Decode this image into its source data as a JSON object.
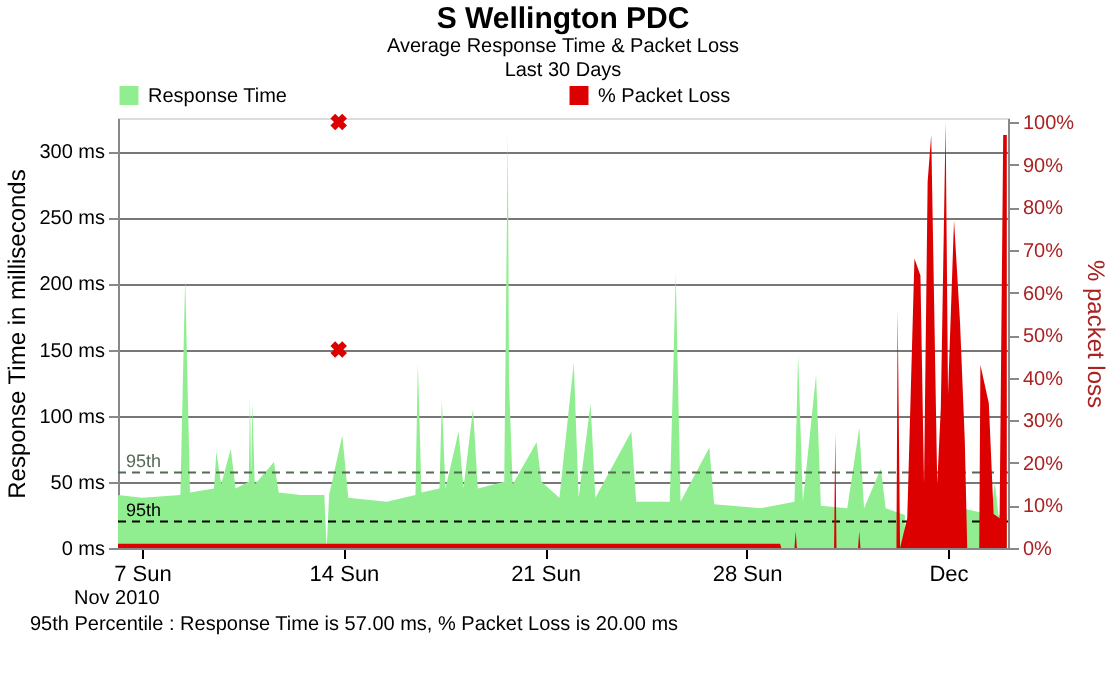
{
  "chart_data": {
    "type": "area",
    "title": "S Wellington PDC",
    "subtitle": "Average Response Time & Packet Loss\nLast 30 Days",
    "ylabel": "Response Time in milliseconds",
    "y2label": "% packet loss",
    "xlim": [
      "2010-11-06T04:00",
      "2010-12-07T02:00"
    ],
    "xticks": [
      {
        "value": "2010-11-07",
        "label": "7 Sun"
      },
      {
        "value": "2010-11-14",
        "label": "14 Sun"
      },
      {
        "value": "2010-11-21",
        "label": "21 Sun"
      },
      {
        "value": "2010-11-28",
        "label": "28 Sun"
      },
      {
        "value": "2010-12-05",
        "label": "Dec"
      }
    ],
    "ylim": [
      0,
      325
    ],
    "yticks": [
      {
        "value": 0,
        "label": "0 ms"
      },
      {
        "value": 50,
        "label": "50 ms"
      },
      {
        "value": 100,
        "label": "100 ms"
      },
      {
        "value": 150,
        "label": "150 ms"
      },
      {
        "value": 200,
        "label": "200 ms"
      },
      {
        "value": 250,
        "label": "250 ms"
      },
      {
        "value": 300,
        "label": "300 ms"
      }
    ],
    "y2lim": [
      0,
      101
    ],
    "y2ticks": [
      {
        "value": 0,
        "label": "0%"
      },
      {
        "value": 10,
        "label": "10%"
      },
      {
        "value": 20,
        "label": "20%"
      },
      {
        "value": 30,
        "label": "30%"
      },
      {
        "value": 40,
        "label": "40%"
      },
      {
        "value": 50,
        "label": "50%"
      },
      {
        "value": 60,
        "label": "60%"
      },
      {
        "value": 70,
        "label": "70%"
      },
      {
        "value": 80,
        "label": "80%"
      },
      {
        "value": 90,
        "label": "90%"
      },
      {
        "value": 100,
        "label": "100%"
      }
    ],
    "grid": "y",
    "legend": "top",
    "series": [
      {
        "name": "Response Time",
        "color": "#90ee90",
        "x": [
          "2010-11-06T04:00",
          "2010-11-07T00:00",
          "2010-11-08T08:00",
          "2010-11-08T12:00",
          "2010-11-08T16:00",
          "2010-11-09T12:00",
          "2010-11-09T14:00",
          "2010-11-09T18:00",
          "2010-11-10T02:00",
          "2010-11-10T06:00",
          "2010-11-10T17:00",
          "2010-11-10T18:00",
          "2010-11-10T19:00",
          "2010-11-10T20:00",
          "2010-11-10T22:00",
          "2010-11-11T14:00",
          "2010-11-11T18:00",
          "2010-11-12T12:00",
          "2010-11-13T08:00",
          "2010-11-13T10:00",
          "2010-11-13T12:00",
          "2010-11-13T23:00",
          "2010-11-14T04:00",
          "2010-11-15T12:00",
          "2010-11-16T12:00",
          "2010-11-16T14:00",
          "2010-11-16T17:00",
          "2010-11-17T08:00",
          "2010-11-17T10:00",
          "2010-11-17T13:00",
          "2010-11-18T00:00",
          "2010-11-18T04:00",
          "2010-11-18T12:00",
          "2010-11-18T16:00",
          "2010-11-19T14:00",
          "2010-11-19T17:00",
          "2010-11-19T18:00",
          "2010-11-19T21:00",
          "2010-11-20T17:00",
          "2010-11-20T21:00",
          "2010-11-21T12:00",
          "2010-11-22T00:00",
          "2010-11-22T04:00",
          "2010-11-22T14:00",
          "2010-11-22T18:00",
          "2010-11-24T00:00",
          "2010-11-24T04:00",
          "2010-11-25T08:00",
          "2010-11-25T13:00",
          "2010-11-25T17:00",
          "2010-11-26T17:00",
          "2010-11-26T21:00",
          "2010-11-28T12:00",
          "2010-11-29T16:00",
          "2010-11-29T19:00",
          "2010-11-29T23:00",
          "2010-11-30T10:00",
          "2010-11-30T14:00",
          "2010-12-01T12:00",
          "2010-12-01T22:00",
          "2010-12-02T02:00",
          "2010-12-02T16:00",
          "2010-12-02T20:00",
          "2010-12-03T12:00",
          "2010-12-04T12:00",
          "2010-12-05T12:00",
          "2010-12-06T12:00",
          "2010-12-06T15:00",
          "2010-12-06T18:00",
          "2010-12-07T01:00"
        ],
        "values": [
          40,
          38,
          40,
          205,
          42,
          45,
          73,
          48,
          75,
          45,
          50,
          115,
          55,
          110,
          48,
          65,
          42,
          40,
          40,
          0,
          40,
          85,
          38,
          35,
          40,
          140,
          42,
          45,
          112,
          45,
          88,
          45,
          105,
          45,
          50,
          313,
          125,
          48,
          80,
          50,
          38,
          140,
          38,
          109,
          38,
          88,
          35,
          35,
          207,
          35,
          76,
          33,
          30,
          35,
          146,
          35,
          131,
          32,
          30,
          91,
          30,
          60,
          30,
          25,
          null,
          30,
          25,
          50,
          25,
          25
        ]
      },
      {
        "name": "% Packet Loss",
        "axis": "y2",
        "color": "#dd0000",
        "x": [
          "2010-11-06T04:00",
          "2010-11-29T04:00",
          "2010-11-29T05:00",
          "2010-11-29T16:00",
          "2010-11-29T17:00",
          "2010-11-29T18:00",
          "2010-12-01T01:00",
          "2010-12-01T02:00",
          "2010-12-01T03:00",
          "2010-12-01T21:00",
          "2010-12-01T22:00",
          "2010-12-01T23:00",
          "2010-12-03T05:00",
          "2010-12-03T06:00",
          "2010-12-03T08:00",
          "2010-12-03T14:00",
          "2010-12-03T20:00",
          "2010-12-04T01:00",
          "2010-12-04T04:00",
          "2010-12-04T07:00",
          "2010-12-04T10:00",
          "2010-12-04T15:00",
          "2010-12-04T18:00",
          "2010-12-04T22:00",
          "2010-12-05T00:00",
          "2010-12-05T05:00",
          "2010-12-05T10:00",
          "2010-12-05T14:00",
          "2010-12-05T16:00",
          "2010-12-06T02:00",
          "2010-12-06T03:00",
          "2010-12-06T10:00",
          "2010-12-06T14:00",
          "2010-12-06T19:00",
          "2010-12-06T22:00",
          "2010-12-07T01:00"
        ],
        "values": [
          1,
          1,
          0,
          0,
          4,
          0,
          0,
          27,
          0,
          0,
          4,
          0,
          0,
          56,
          0,
          7,
          68,
          64,
          15,
          86,
          97,
          15,
          33,
          100,
          36,
          77,
          53,
          25,
          0,
          0,
          43,
          34,
          8,
          7,
          97,
          97
        ]
      },
      {
        "type": "scatter",
        "marker": "cross",
        "color": "#dd0000",
        "x": [
          "2010-11-13T20:00",
          "2010-11-13T20:00"
        ],
        "values": [
          322,
          150
        ]
      }
    ],
    "ref_lines": [
      {
        "axis": "y",
        "value": 57,
        "label": "95th",
        "color": "#556b55",
        "line_style": "dashed"
      },
      {
        "axis": "y",
        "value": 20,
        "label": "95th",
        "color": "#000000",
        "line_style": "dashed"
      }
    ],
    "annotations": [
      "Nov 2010",
      "95th Percentile : Response Time is 57.00 ms, % Packet Loss is 20.00 ms"
    ]
  }
}
